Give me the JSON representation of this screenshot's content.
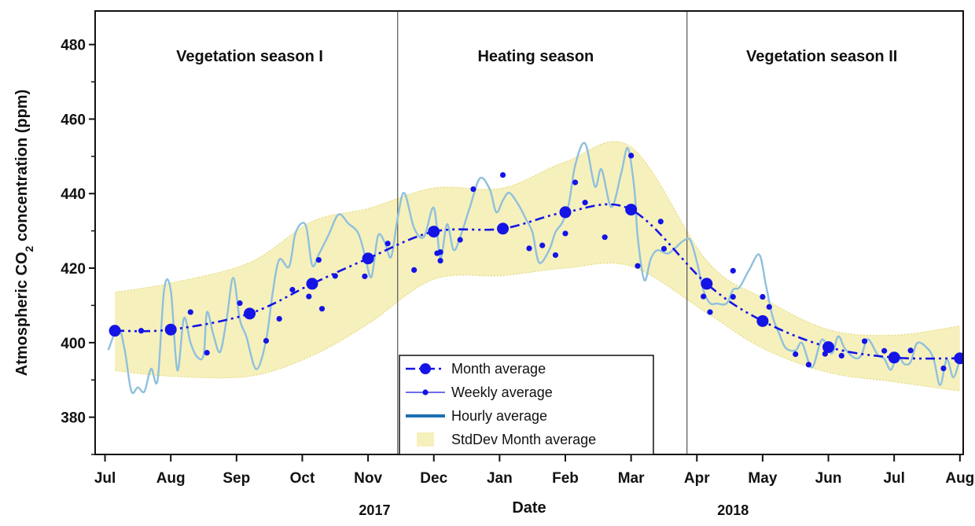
{
  "chart_data": {
    "type": "line",
    "xlabel": "Date",
    "ylabel_main": "Atmospheric CO",
    "ylabel_sub": "2",
    "ylabel_rest": " concentration (ppm)",
    "ylim": [
      370,
      489
    ],
    "xlim": [
      -0.15,
      13.05
    ],
    "yticks": [
      380,
      400,
      420,
      440,
      460,
      480
    ],
    "months": [
      {
        "label": "Jul",
        "t": 0
      },
      {
        "label": "Aug",
        "t": 1
      },
      {
        "label": "Sep",
        "t": 2
      },
      {
        "label": "Oct",
        "t": 3
      },
      {
        "label": "Nov",
        "t": 4
      },
      {
        "label": "Dec",
        "t": 5
      },
      {
        "label": "Jan",
        "t": 6
      },
      {
        "label": "Feb",
        "t": 7
      },
      {
        "label": "Mar",
        "t": 8
      },
      {
        "label": "Apr",
        "t": 9
      },
      {
        "label": "May",
        "t": 10
      },
      {
        "label": "Jun",
        "t": 11
      },
      {
        "label": "Jul",
        "t": 12
      },
      {
        "label": "Aug",
        "t": 13
      }
    ],
    "years": [
      {
        "label": "2017",
        "t": 4.1
      },
      {
        "label": "2018",
        "t": 9.55
      }
    ],
    "season_dividers": [
      4.45,
      8.85
    ],
    "seasons": [
      {
        "label": "Vegetation season I",
        "t": 2.2,
        "y": 477
      },
      {
        "label": "Heating season",
        "t": 6.55,
        "y": 477
      },
      {
        "label": "Vegetation season II",
        "t": 10.9,
        "y": 477
      }
    ],
    "series": [
      {
        "name": "Month average",
        "color": "#1414e6",
        "points": [
          [
            0.15,
            403.2
          ],
          [
            1.0,
            403.5
          ],
          [
            2.2,
            407.8
          ],
          [
            3.15,
            415.8
          ],
          [
            4.0,
            422.6
          ],
          [
            5.0,
            429.8
          ],
          [
            6.05,
            430.6
          ],
          [
            7.0,
            435.0
          ],
          [
            8.0,
            435.7
          ],
          [
            9.15,
            415.8
          ],
          [
            10.0,
            405.8
          ],
          [
            11.0,
            398.8
          ],
          [
            12.0,
            396.0
          ],
          [
            13.0,
            395.8
          ]
        ]
      },
      {
        "name": "Weekly average",
        "color": "#1414e6",
        "points": [
          [
            0.55,
            403.2
          ],
          [
            1.3,
            408.2
          ],
          [
            1.55,
            397.3
          ],
          [
            2.05,
            410.6
          ],
          [
            2.45,
            400.5
          ],
          [
            2.65,
            406.4
          ],
          [
            2.85,
            414.2
          ],
          [
            3.1,
            412.4
          ],
          [
            3.25,
            422.2
          ],
          [
            3.3,
            409.1
          ],
          [
            3.5,
            417.9
          ],
          [
            3.95,
            417.8
          ],
          [
            4.3,
            426.6
          ],
          [
            4.7,
            419.5
          ],
          [
            5.1,
            424.3
          ],
          [
            5.4,
            427.6
          ],
          [
            5.05,
            424.0
          ],
          [
            5.1,
            422.0
          ],
          [
            5.6,
            441.2
          ],
          [
            6.05,
            445.0
          ],
          [
            6.45,
            425.3
          ],
          [
            6.65,
            426.1
          ],
          [
            6.85,
            423.5
          ],
          [
            7.0,
            429.3
          ],
          [
            7.15,
            443.0
          ],
          [
            7.3,
            437.6
          ],
          [
            7.6,
            428.3
          ],
          [
            8.0,
            450.2
          ],
          [
            8.1,
            420.6
          ],
          [
            8.45,
            432.5
          ],
          [
            8.5,
            425.2
          ],
          [
            9.1,
            412.4
          ],
          [
            9.2,
            408.2
          ],
          [
            9.55,
            419.3
          ],
          [
            9.55,
            412.3
          ],
          [
            10.0,
            412.3
          ],
          [
            10.1,
            409.6
          ],
          [
            10.5,
            396.9
          ],
          [
            10.7,
            394.1
          ],
          [
            10.95,
            397.0
          ],
          [
            11.2,
            396.5
          ],
          [
            11.55,
            400.4
          ],
          [
            11.85,
            397.8
          ],
          [
            12.25,
            397.9
          ],
          [
            12.75,
            393.1
          ],
          [
            12.95,
            395.8
          ]
        ]
      },
      {
        "name": "Hourly average",
        "color": "#8fc0dc",
        "points": [
          [
            0.05,
            398.0
          ],
          [
            0.2,
            404.0
          ],
          [
            0.3,
            398.0
          ],
          [
            0.4,
            387.0
          ],
          [
            0.5,
            388.0
          ],
          [
            0.6,
            386.9
          ],
          [
            0.7,
            393.0
          ],
          [
            0.8,
            390.0
          ],
          [
            0.9,
            414.3
          ],
          [
            1.0,
            414.0
          ],
          [
            1.1,
            392.6
          ],
          [
            1.2,
            406.6
          ],
          [
            1.3,
            400.0
          ],
          [
            1.4,
            396.2
          ],
          [
            1.5,
            396.7
          ],
          [
            1.55,
            408.2
          ],
          [
            1.65,
            402.0
          ],
          [
            1.75,
            397.5
          ],
          [
            1.85,
            406.4
          ],
          [
            1.95,
            417.4
          ],
          [
            2.05,
            406.2
          ],
          [
            2.15,
            401.6
          ],
          [
            2.3,
            392.9
          ],
          [
            2.45,
            400.7
          ],
          [
            2.55,
            413.4
          ],
          [
            2.65,
            422.3
          ],
          [
            2.8,
            420.4
          ],
          [
            2.9,
            429.6
          ],
          [
            3.05,
            431.6
          ],
          [
            3.15,
            420.8
          ],
          [
            3.25,
            423.7
          ],
          [
            3.4,
            428.9
          ],
          [
            3.55,
            434.4
          ],
          [
            3.7,
            432.0
          ],
          [
            3.85,
            429.4
          ],
          [
            3.95,
            423.6
          ],
          [
            4.05,
            417.6
          ],
          [
            4.15,
            428.6
          ],
          [
            4.25,
            427.1
          ],
          [
            4.35,
            423.0
          ],
          [
            4.45,
            433.4
          ],
          [
            4.55,
            440.2
          ],
          [
            4.7,
            430.8
          ],
          [
            4.85,
            428.4
          ],
          [
            5.0,
            436.2
          ],
          [
            5.1,
            422.8
          ],
          [
            5.2,
            431.8
          ],
          [
            5.3,
            424.9
          ],
          [
            5.4,
            428.3
          ],
          [
            5.55,
            436.4
          ],
          [
            5.7,
            444.1
          ],
          [
            5.85,
            441.2
          ],
          [
            5.95,
            435.0
          ],
          [
            6.05,
            438.2
          ],
          [
            6.15,
            440.2
          ],
          [
            6.3,
            436.6
          ],
          [
            6.4,
            433.2
          ],
          [
            6.5,
            429.6
          ],
          [
            6.6,
            421.5
          ],
          [
            6.75,
            424.7
          ],
          [
            6.85,
            429.7
          ],
          [
            6.95,
            432.1
          ],
          [
            7.05,
            437.0
          ],
          [
            7.15,
            447.6
          ],
          [
            7.3,
            453.5
          ],
          [
            7.45,
            441.9
          ],
          [
            7.55,
            446.5
          ],
          [
            7.7,
            436.4
          ],
          [
            7.85,
            445.5
          ],
          [
            7.95,
            452.2
          ],
          [
            8.05,
            441.2
          ],
          [
            8.1,
            428.4
          ],
          [
            8.2,
            416.8
          ],
          [
            8.3,
            422.5
          ],
          [
            8.4,
            424.8
          ],
          [
            8.55,
            423.9
          ],
          [
            8.65,
            425.1
          ],
          [
            8.8,
            427.4
          ],
          [
            8.9,
            427.5
          ],
          [
            9.0,
            421.7
          ],
          [
            9.1,
            414.1
          ],
          [
            9.2,
            410.6
          ],
          [
            9.3,
            410.5
          ],
          [
            9.45,
            410.5
          ],
          [
            9.55,
            414.2
          ],
          [
            9.65,
            414.9
          ],
          [
            9.8,
            419.7
          ],
          [
            9.95,
            423.6
          ],
          [
            10.05,
            415.4
          ],
          [
            10.15,
            407.1
          ],
          [
            10.25,
            402.5
          ],
          [
            10.35,
            398.6
          ],
          [
            10.5,
            397.9
          ],
          [
            10.6,
            399.9
          ],
          [
            10.75,
            393.3
          ],
          [
            10.9,
            400.8
          ],
          [
            11.05,
            397.1
          ],
          [
            11.15,
            401.7
          ],
          [
            11.25,
            398.4
          ],
          [
            11.4,
            395.9
          ],
          [
            11.5,
            396.6
          ],
          [
            11.6,
            400.9
          ],
          [
            11.75,
            396.7
          ],
          [
            11.85,
            395.7
          ],
          [
            11.95,
            392.7
          ],
          [
            12.05,
            396.7
          ],
          [
            12.15,
            394.3
          ],
          [
            12.25,
            394.8
          ],
          [
            12.35,
            399.9
          ],
          [
            12.5,
            398.6
          ],
          [
            12.6,
            395.6
          ],
          [
            12.7,
            388.6
          ],
          [
            12.8,
            395.5
          ],
          [
            12.9,
            390.7
          ],
          [
            13.0,
            395.7
          ]
        ]
      }
    ],
    "stddev_band": {
      "name": "StdDev Month average",
      "color": "#f6f0bd",
      "upper": [
        [
          0.15,
          413.5
        ],
        [
          1.0,
          416.0
        ],
        [
          2.2,
          421.5
        ],
        [
          3.15,
          432.5
        ],
        [
          4.0,
          436.0
        ],
        [
          5.0,
          441.5
        ],
        [
          6.05,
          441.5
        ],
        [
          7.0,
          448.5
        ],
        [
          8.0,
          452.5
        ],
        [
          9.15,
          422.0
        ],
        [
          10.0,
          412.0
        ],
        [
          11.0,
          403.5
        ],
        [
          12.0,
          402.0
        ],
        [
          13.0,
          404.5
        ]
      ],
      "lower": [
        [
          0.15,
          392.5
        ],
        [
          1.0,
          391.0
        ],
        [
          2.2,
          391.0
        ],
        [
          3.15,
          396.5
        ],
        [
          4.0,
          405.0
        ],
        [
          5.0,
          417.0
        ],
        [
          6.05,
          418.0
        ],
        [
          7.0,
          420.0
        ],
        [
          8.0,
          420.5
        ],
        [
          9.15,
          408.0
        ],
        [
          10.0,
          398.5
        ],
        [
          11.0,
          392.0
        ],
        [
          12.0,
          389.5
        ],
        [
          13.0,
          387.0
        ]
      ]
    },
    "legend": {
      "placement": "bottom-center",
      "entries": [
        {
          "label": "Month average",
          "style": "dashdot-large-marker"
        },
        {
          "label": "Weekly average",
          "style": "thin-line-small-marker"
        },
        {
          "label": "Hourly average",
          "style": "thick-line"
        },
        {
          "label": "StdDev Month average",
          "style": "filled-box"
        }
      ]
    }
  }
}
